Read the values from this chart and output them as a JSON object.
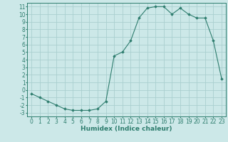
{
  "x": [
    0,
    1,
    2,
    3,
    4,
    5,
    6,
    7,
    8,
    9,
    10,
    11,
    12,
    13,
    14,
    15,
    16,
    17,
    18,
    19,
    20,
    21,
    22,
    23
  ],
  "y": [
    -0.5,
    -1.0,
    -1.5,
    -2.0,
    -2.5,
    -2.7,
    -2.7,
    -2.7,
    -2.5,
    -1.5,
    4.5,
    5.0,
    6.5,
    9.5,
    10.8,
    11.0,
    11.0,
    10.0,
    10.8,
    10.0,
    9.5,
    9.5,
    6.5,
    1.5
  ],
  "xlabel": "Humidex (Indice chaleur)",
  "xlim": [
    -0.5,
    23.5
  ],
  "ylim": [
    -3.5,
    11.5
  ],
  "yticks": [
    -3,
    -2,
    -1,
    0,
    1,
    2,
    3,
    4,
    5,
    6,
    7,
    8,
    9,
    10,
    11
  ],
  "xticks": [
    0,
    1,
    2,
    3,
    4,
    5,
    6,
    7,
    8,
    9,
    10,
    11,
    12,
    13,
    14,
    15,
    16,
    17,
    18,
    19,
    20,
    21,
    22,
    23
  ],
  "line_color": "#2e7d6e",
  "marker": "D",
  "marker_size": 1.8,
  "bg_color": "#cce8e8",
  "grid_color": "#aacfcf",
  "xlabel_fontsize": 6.5,
  "tick_fontsize": 5.5
}
